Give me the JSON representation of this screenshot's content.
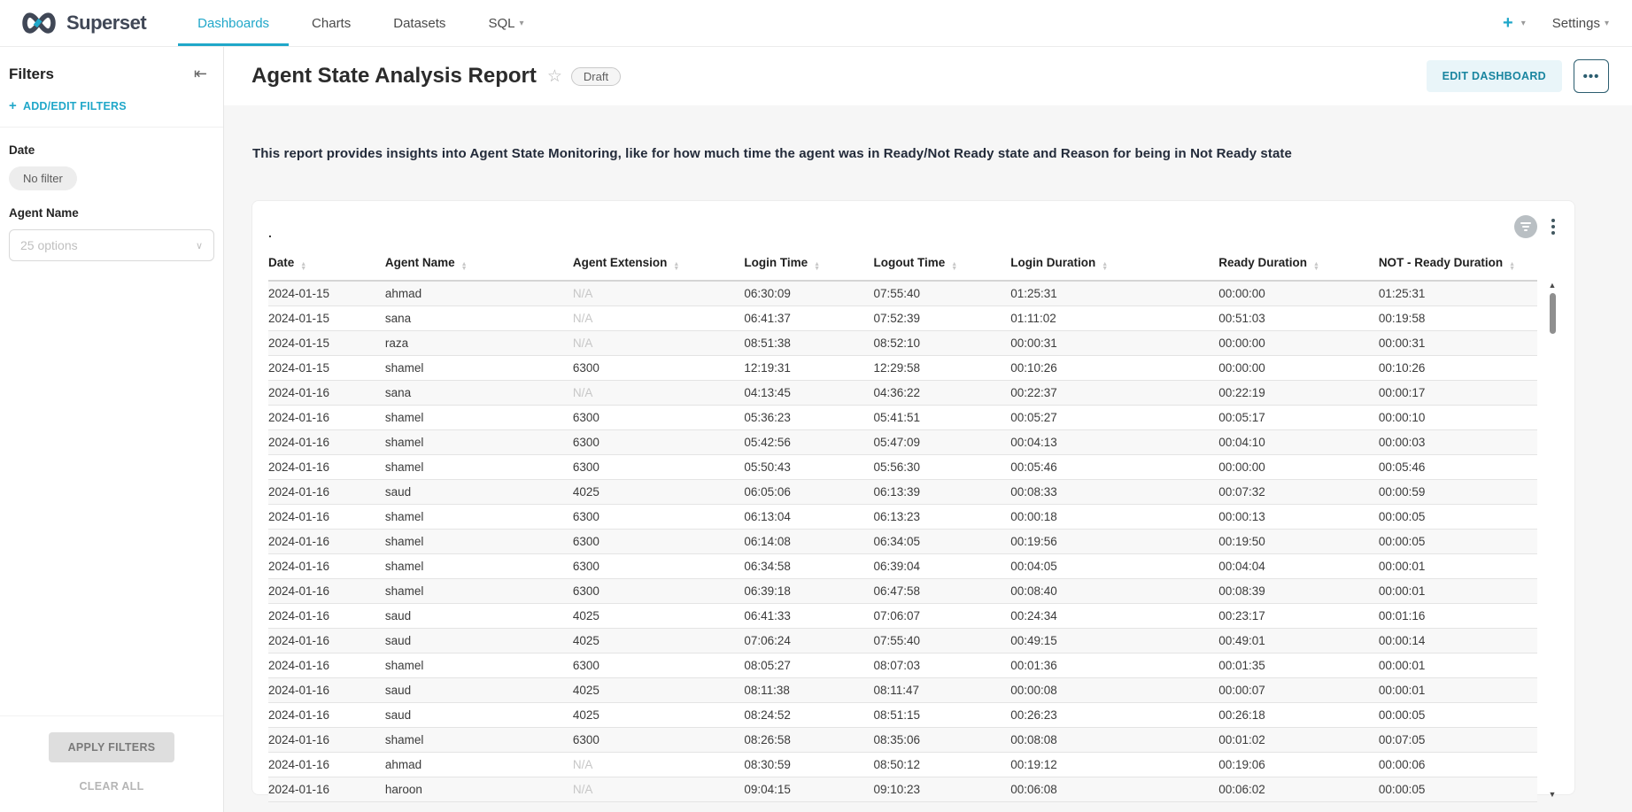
{
  "navbar": {
    "brand": "Superset",
    "items": [
      {
        "label": "Dashboards",
        "active": true
      },
      {
        "label": "Charts",
        "active": false
      },
      {
        "label": "Datasets",
        "active": false
      },
      {
        "label": "SQL",
        "active": false,
        "caret": true
      }
    ],
    "plus_label": "+",
    "settings_label": "Settings"
  },
  "filters_panel": {
    "title": "Filters",
    "add_edit_label": "ADD/EDIT FILTERS",
    "date_filter": {
      "label": "Date",
      "value": "No filter"
    },
    "agent_filter": {
      "label": "Agent Name",
      "placeholder": "25 options"
    },
    "apply_label": "APPLY FILTERS",
    "clear_label": "CLEAR ALL"
  },
  "dashboard_header": {
    "title": "Agent State Analysis Report",
    "status_badge": "Draft",
    "edit_button": "EDIT DASHBOARD",
    "menu_button": "..."
  },
  "description": "This report provides insights into Agent State Monitoring, like for how much time the agent was in Ready/Not Ready state and Reason for being in Not Ready state",
  "chart": {
    "title": ".",
    "columns": [
      "Date",
      "Agent Name",
      "Agent Extension",
      "Login Time",
      "Logout Time",
      "Login Duration",
      "Ready Duration",
      "NOT - Ready Duration"
    ],
    "rows": [
      [
        "2024-01-15",
        "ahmad",
        "N/A",
        "06:30:09",
        "07:55:40",
        "01:25:31",
        "00:00:00",
        "01:25:31"
      ],
      [
        "2024-01-15",
        "sana",
        "N/A",
        "06:41:37",
        "07:52:39",
        "01:11:02",
        "00:51:03",
        "00:19:58"
      ],
      [
        "2024-01-15",
        "raza",
        "N/A",
        "08:51:38",
        "08:52:10",
        "00:00:31",
        "00:00:00",
        "00:00:31"
      ],
      [
        "2024-01-15",
        "shamel",
        "6300",
        "12:19:31",
        "12:29:58",
        "00:10:26",
        "00:00:00",
        "00:10:26"
      ],
      [
        "2024-01-16",
        "sana",
        "N/A",
        "04:13:45",
        "04:36:22",
        "00:22:37",
        "00:22:19",
        "00:00:17"
      ],
      [
        "2024-01-16",
        "shamel",
        "6300",
        "05:36:23",
        "05:41:51",
        "00:05:27",
        "00:05:17",
        "00:00:10"
      ],
      [
        "2024-01-16",
        "shamel",
        "6300",
        "05:42:56",
        "05:47:09",
        "00:04:13",
        "00:04:10",
        "00:00:03"
      ],
      [
        "2024-01-16",
        "shamel",
        "6300",
        "05:50:43",
        "05:56:30",
        "00:05:46",
        "00:00:00",
        "00:05:46"
      ],
      [
        "2024-01-16",
        "saud",
        "4025",
        "06:05:06",
        "06:13:39",
        "00:08:33",
        "00:07:32",
        "00:00:59"
      ],
      [
        "2024-01-16",
        "shamel",
        "6300",
        "06:13:04",
        "06:13:23",
        "00:00:18",
        "00:00:13",
        "00:00:05"
      ],
      [
        "2024-01-16",
        "shamel",
        "6300",
        "06:14:08",
        "06:34:05",
        "00:19:56",
        "00:19:50",
        "00:00:05"
      ],
      [
        "2024-01-16",
        "shamel",
        "6300",
        "06:34:58",
        "06:39:04",
        "00:04:05",
        "00:04:04",
        "00:00:01"
      ],
      [
        "2024-01-16",
        "shamel",
        "6300",
        "06:39:18",
        "06:47:58",
        "00:08:40",
        "00:08:39",
        "00:00:01"
      ],
      [
        "2024-01-16",
        "saud",
        "4025",
        "06:41:33",
        "07:06:07",
        "00:24:34",
        "00:23:17",
        "00:01:16"
      ],
      [
        "2024-01-16",
        "saud",
        "4025",
        "07:06:24",
        "07:55:40",
        "00:49:15",
        "00:49:01",
        "00:00:14"
      ],
      [
        "2024-01-16",
        "shamel",
        "6300",
        "08:05:27",
        "08:07:03",
        "00:01:36",
        "00:01:35",
        "00:00:01"
      ],
      [
        "2024-01-16",
        "saud",
        "4025",
        "08:11:38",
        "08:11:47",
        "00:00:08",
        "00:00:07",
        "00:00:01"
      ],
      [
        "2024-01-16",
        "saud",
        "4025",
        "08:24:52",
        "08:51:15",
        "00:26:23",
        "00:26:18",
        "00:00:05"
      ],
      [
        "2024-01-16",
        "shamel",
        "6300",
        "08:26:58",
        "08:35:06",
        "00:08:08",
        "00:01:02",
        "00:07:05"
      ],
      [
        "2024-01-16",
        "ahmad",
        "N/A",
        "08:30:59",
        "08:50:12",
        "00:19:12",
        "00:19:06",
        "00:00:06"
      ],
      [
        "2024-01-16",
        "haroon",
        "N/A",
        "09:04:15",
        "09:10:23",
        "00:06:08",
        "00:06:02",
        "00:00:05"
      ]
    ]
  },
  "colors": {
    "accent": "#20a7c9",
    "edit_button_bg": "#e9f5f9",
    "edit_button_text": "#1985a0",
    "content_bg": "#f6f6f6",
    "row_stripe": "#f8f8f8",
    "na_text": "#c7c7c7"
  }
}
